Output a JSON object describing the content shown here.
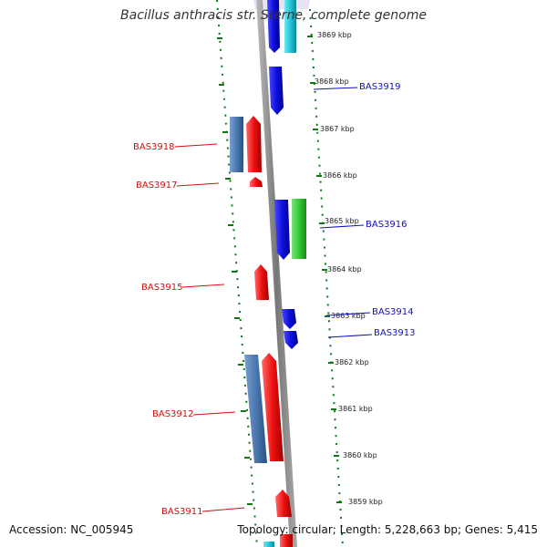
{
  "title": "Bacillus anthracis str. Sterne, complete genome",
  "accession": "Accession: NC_005945",
  "topology": "Topology: circular; Length: 5,228,663 bp; Genes: 5,415",
  "colors": {
    "forward_label": "#d01010",
    "reverse_label": "#1010c0",
    "red": "#ee1111",
    "blue": "#1010e0",
    "steel": "#4a78b0",
    "green": "#33cc33",
    "cyan": "#22c8d8",
    "tick": "#117711",
    "backbone": "#888888"
  },
  "scale_ticks": [
    "3869 kbp",
    "3868 kbp",
    "3867 kbp",
    "3866 kbp",
    "3865 kbp",
    "3864 kbp",
    "3863 kbp",
    "3862 kbp",
    "3861 kbp",
    "3860 kbp",
    "3859 kbp"
  ],
  "gene_labels": [
    {
      "id": "BAS3919",
      "side": "right"
    },
    {
      "id": "BAS3918",
      "side": "left"
    },
    {
      "id": "BAS3917",
      "side": "left"
    },
    {
      "id": "BAS3916",
      "side": "right"
    },
    {
      "id": "BAS3915",
      "side": "left"
    },
    {
      "id": "BAS3914",
      "side": "right"
    },
    {
      "id": "BAS3913",
      "side": "right"
    },
    {
      "id": "BAS3912",
      "side": "left"
    },
    {
      "id": "BAS3911",
      "side": "left"
    }
  ]
}
